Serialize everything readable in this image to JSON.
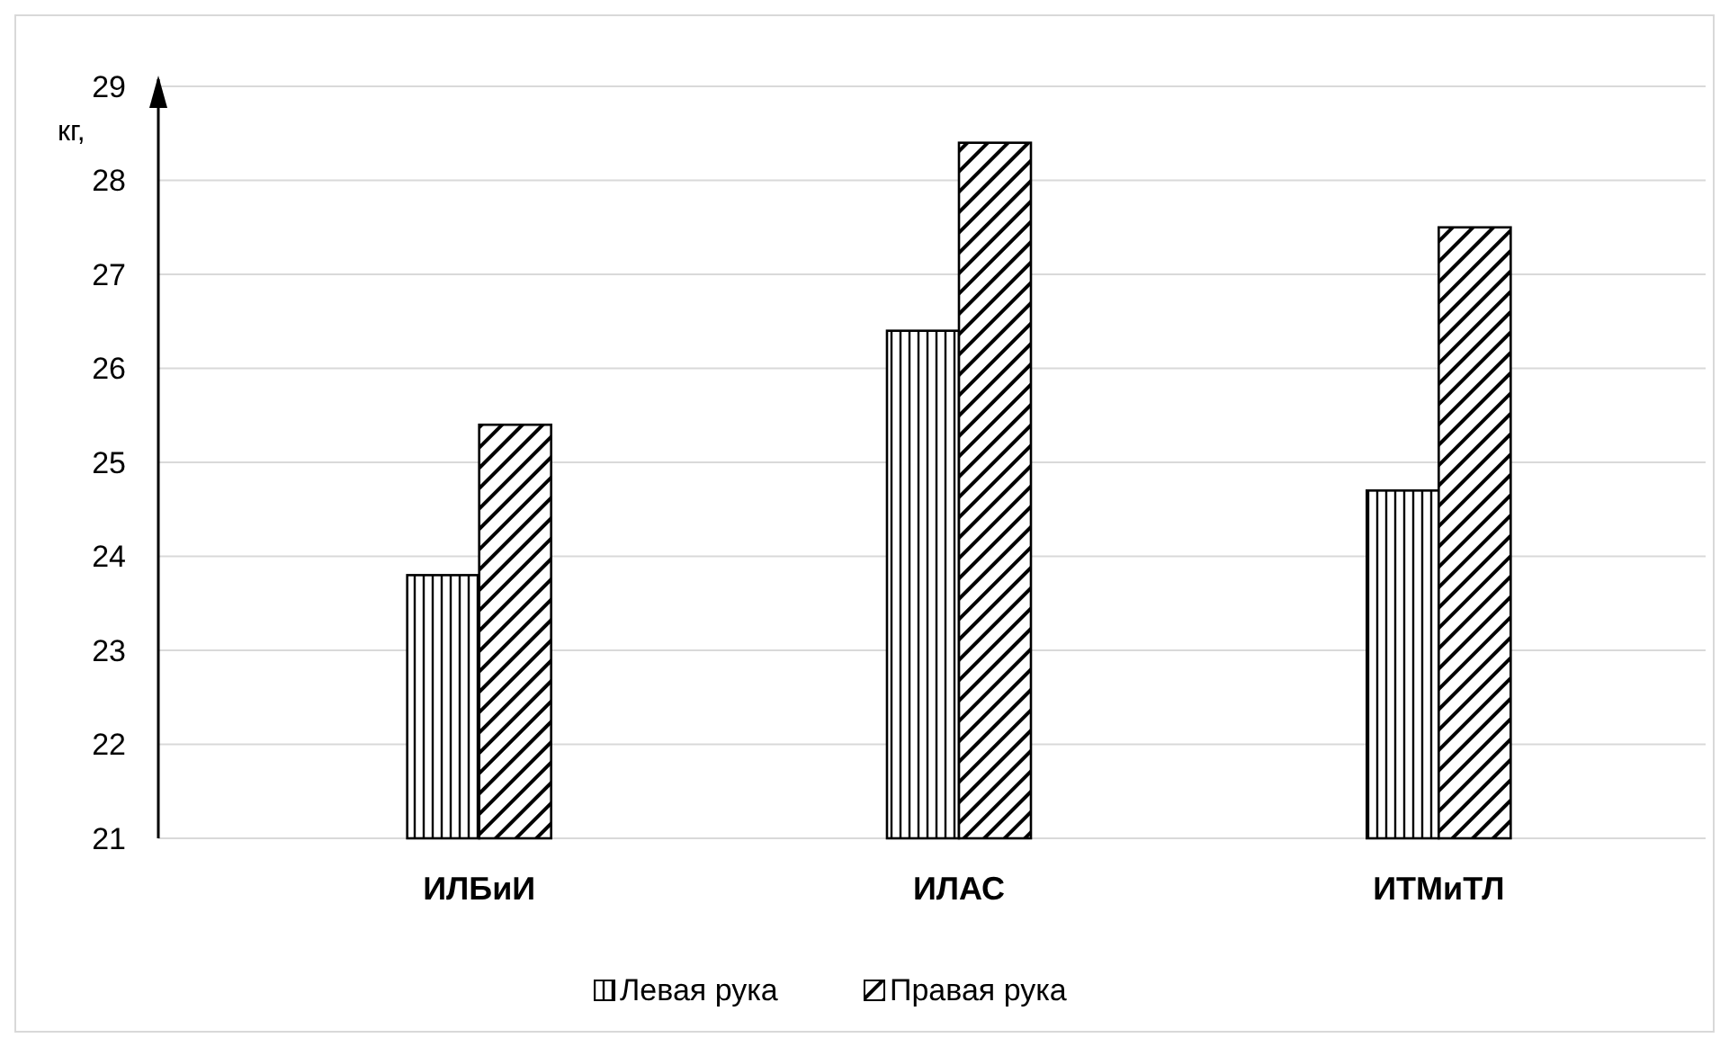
{
  "chart_data": {
    "type": "bar",
    "ylabel": "кг,",
    "categories": [
      "ИЛБиИ",
      "ИЛАС",
      "ИТМиТЛ"
    ],
    "series": [
      {
        "name": "Левая рука",
        "color": "#000000",
        "values": [
          23.8,
          26.4,
          24.7
        ]
      },
      {
        "name": "Правая рука",
        "color": "#000000",
        "values": [
          25.4,
          28.4,
          27.5
        ]
      }
    ],
    "ylim": [
      21,
      29
    ],
    "yticks": [
      21,
      22,
      23,
      24,
      25,
      26,
      27,
      28,
      29
    ],
    "grid": "y",
    "legend": "bottom"
  }
}
